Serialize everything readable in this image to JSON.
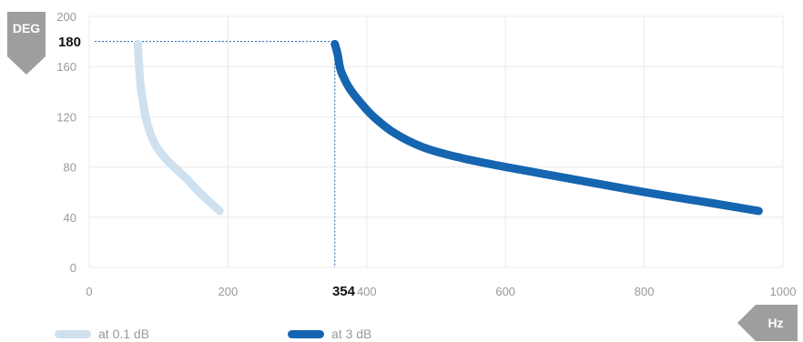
{
  "chart_data": {
    "type": "line",
    "x_axis": {
      "unit_label": "Hz",
      "min": 0,
      "max": 1000,
      "ticks": [
        0,
        200,
        400,
        600,
        800,
        1000
      ]
    },
    "y_axis": {
      "unit_label": "DEG",
      "min": 0,
      "max": 200,
      "ticks": [
        0,
        40,
        80,
        120,
        160,
        200
      ]
    },
    "grid": true,
    "highlight": {
      "x": 354,
      "y": 180,
      "x_label": "354",
      "y_label": "180"
    },
    "legend_position": "bottom-left",
    "series": [
      {
        "name": "at 0.1 dB",
        "color": "#cfe0ee",
        "points": [
          [
            70,
            178
          ],
          [
            72,
            160
          ],
          [
            74,
            145
          ],
          [
            78,
            130
          ],
          [
            82,
            118
          ],
          [
            88,
            107
          ],
          [
            96,
            97
          ],
          [
            108,
            88
          ],
          [
            122,
            80
          ],
          [
            138,
            72
          ],
          [
            155,
            62
          ],
          [
            172,
            53
          ],
          [
            188,
            45
          ]
        ]
      },
      {
        "name": "at 3 dB",
        "color": "#1565b0",
        "points": [
          [
            354,
            178
          ],
          [
            358,
            170
          ],
          [
            362,
            158
          ],
          [
            368,
            150
          ],
          [
            376,
            142
          ],
          [
            390,
            132
          ],
          [
            410,
            120
          ],
          [
            440,
            107
          ],
          [
            480,
            96
          ],
          [
            530,
            88
          ],
          [
            600,
            80
          ],
          [
            700,
            70
          ],
          [
            800,
            60
          ],
          [
            900,
            51
          ],
          [
            965,
            45
          ]
        ]
      }
    ]
  },
  "badges": {
    "y_unit": "DEG",
    "x_unit": "Hz"
  }
}
